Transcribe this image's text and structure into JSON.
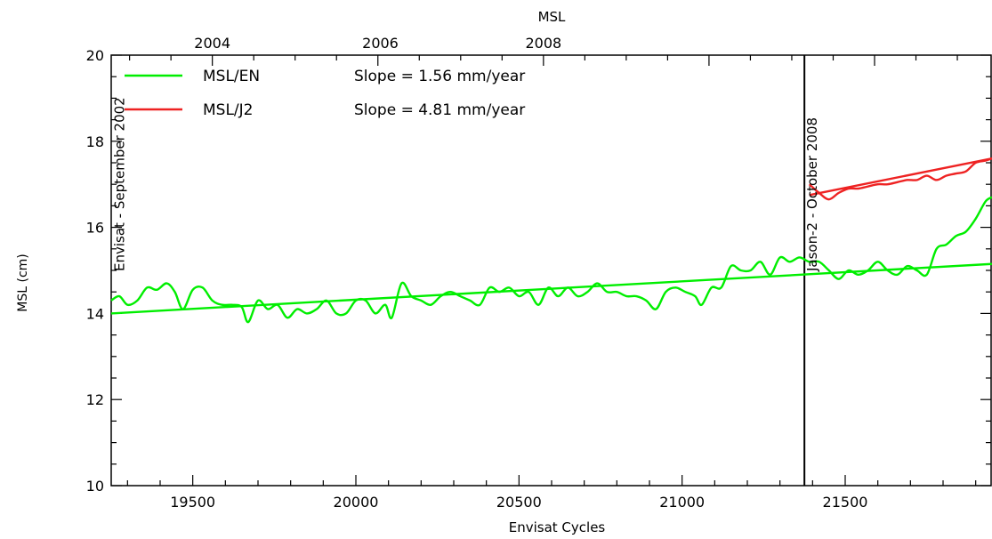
{
  "chart_data": {
    "type": "line",
    "title": "MSL",
    "xlabel": "Envisat Cycles",
    "ylabel": "MSL (cm)",
    "xlim": [
      19250,
      21950
    ],
    "ylim": [
      10,
      20
    ],
    "x_ticks": [
      19500,
      20000,
      20500,
      21000,
      21500
    ],
    "y_ticks": [
      10,
      12,
      14,
      16,
      18,
      20
    ],
    "top_axis": {
      "labels": [
        "2004",
        "2006",
        "2008"
      ],
      "cycles": [
        19560,
        20075,
        20575
      ]
    },
    "vertical_markers": [
      {
        "x": 21375,
        "label": "Envisat - September 2002",
        "label_x": 19262
      },
      {
        "x": 21375,
        "label": "Jason-2 - October 2008",
        "label_x": 21385
      }
    ],
    "legend": {
      "placement": "top-left",
      "entries": [
        {
          "name": "MSL/EN",
          "slope_text": "Slope = 1.56 mm/year",
          "color": "#00ee00"
        },
        {
          "name": "MSL/J2",
          "slope_text": "Slope = 4.81 mm/year",
          "color": "#ee2222"
        }
      ]
    },
    "series": [
      {
        "name": "MSL/EN",
        "color": "#00ee00",
        "x": [
          19250,
          19275,
          19300,
          19330,
          19360,
          19390,
          19420,
          19445,
          19470,
          19500,
          19530,
          19560,
          19590,
          19620,
          19650,
          19670,
          19700,
          19730,
          19760,
          19790,
          19820,
          19850,
          19880,
          19910,
          19940,
          19970,
          20000,
          20030,
          20060,
          20090,
          20110,
          20140,
          20170,
          20200,
          20230,
          20260,
          20290,
          20320,
          20350,
          20380,
          20410,
          20440,
          20470,
          20500,
          20530,
          20560,
          20590,
          20620,
          20650,
          20680,
          20710,
          20740,
          20770,
          20800,
          20830,
          20860,
          20890,
          20920,
          20950,
          20980,
          21010,
          21040,
          21060,
          21090,
          21120,
          21150,
          21180,
          21210,
          21240,
          21270,
          21300,
          21330,
          21360,
          21390,
          21420,
          21450,
          21480,
          21510,
          21540,
          21570,
          21600,
          21630,
          21660,
          21690,
          21720,
          21750,
          21780,
          21810,
          21840,
          21870,
          21900,
          21930,
          21950
        ],
        "y": [
          14.3,
          14.4,
          14.2,
          14.3,
          14.6,
          14.55,
          14.7,
          14.5,
          14.1,
          14.55,
          14.6,
          14.3,
          14.2,
          14.2,
          14.15,
          13.8,
          14.3,
          14.1,
          14.2,
          13.9,
          14.1,
          14.0,
          14.1,
          14.3,
          14.0,
          14.0,
          14.3,
          14.3,
          14.0,
          14.2,
          13.9,
          14.7,
          14.4,
          14.3,
          14.2,
          14.4,
          14.5,
          14.4,
          14.3,
          14.2,
          14.6,
          14.5,
          14.6,
          14.4,
          14.5,
          14.2,
          14.6,
          14.4,
          14.6,
          14.4,
          14.5,
          14.7,
          14.5,
          14.5,
          14.4,
          14.4,
          14.3,
          14.1,
          14.5,
          14.6,
          14.5,
          14.4,
          14.2,
          14.6,
          14.6,
          15.1,
          15.0,
          15.0,
          15.2,
          14.9,
          15.3,
          15.2,
          15.3,
          15.2,
          15.2,
          15.0,
          14.8,
          15.0,
          14.9,
          15.0,
          15.2,
          15.0,
          14.9,
          15.1,
          15.0,
          14.9,
          15.5,
          15.6,
          15.8,
          15.9,
          16.2,
          16.6,
          16.7
        ]
      },
      {
        "name": "MSL/J2",
        "color": "#ee2222",
        "x": [
          21390,
          21420,
          21450,
          21480,
          21510,
          21540,
          21570,
          21600,
          21630,
          21660,
          21690,
          21720,
          21750,
          21780,
          21810,
          21840,
          21870,
          21900,
          21930,
          21950
        ],
        "y": [
          17.0,
          16.8,
          16.65,
          16.8,
          16.9,
          16.9,
          16.95,
          17.0,
          17.0,
          17.05,
          17.1,
          17.1,
          17.2,
          17.1,
          17.2,
          17.25,
          17.3,
          17.5,
          17.55,
          17.6
        ]
      },
      {
        "name": "MSL/EN trend",
        "color": "#00ee00",
        "x": [
          19250,
          21950
        ],
        "y": [
          14.0,
          15.15
        ]
      },
      {
        "name": "MSL/J2 trend",
        "color": "#ee2222",
        "x": [
          21390,
          21950
        ],
        "y": [
          16.75,
          17.6
        ]
      }
    ]
  }
}
